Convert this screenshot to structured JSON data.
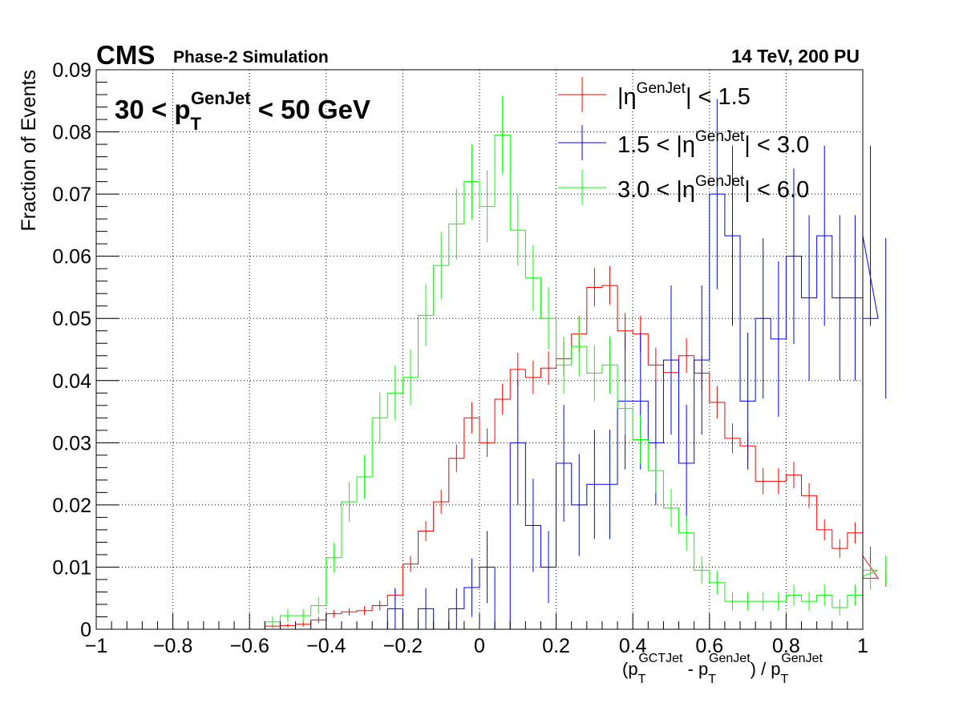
{
  "header": {
    "experiment": "CMS",
    "status": "Phase-2 Simulation",
    "conditions": "14 TeV, 200 PU"
  },
  "annotation": {
    "pre": "30 < p",
    "sub": "T",
    "sup": "GenJet",
    "post": " < 50 GeV"
  },
  "xlabel": {
    "p1": "(p",
    "sub1": "T",
    "sup1": "GCTJet",
    "p2": " - p",
    "sub2": "T",
    "sup2": "GenJet",
    "p3": ") / p",
    "sub3": "T",
    "sup3": "GenJet"
  },
  "ylabel": "Fraction of Events",
  "legend_parts": [
    {
      "pre": "|η",
      "sup": "GenJet",
      "post": "| < 1.5"
    },
    {
      "pre": "1.5 < |η",
      "sup": "GenJet",
      "post": "| < 3.0"
    },
    {
      "pre": "3.0 < |η",
      "sup": "GenJet",
      "post": "| < 6.0"
    }
  ],
  "chart_data": {
    "type": "line",
    "style": "step histogram with error bars",
    "xlim": [
      -1,
      1
    ],
    "ylim": [
      0,
      0.09
    ],
    "bin_width": 0.04,
    "grid": true,
    "legend_position": "top-right",
    "x_ticks": [
      -1,
      -0.8,
      -0.6,
      -0.4,
      -0.2,
      0,
      0.2,
      0.4,
      0.6,
      0.8,
      1
    ],
    "x_tick_labels": [
      "−1",
      "−0.8",
      "−0.6",
      "−0.4",
      "−0.2",
      "0",
      "0.2",
      "0.4",
      "0.6",
      "0.8",
      "1"
    ],
    "y_ticks": [
      0,
      0.01,
      0.02,
      0.03,
      0.04,
      0.05,
      0.06,
      0.07,
      0.08,
      0.09
    ],
    "y_tick_labels": [
      "0",
      "0.01",
      "0.02",
      "0.03",
      "0.04",
      "0.05",
      "0.06",
      "0.07",
      "0.08",
      "0.09"
    ],
    "series": [
      {
        "name": "|ηGenJet| < 1.5",
        "color": "#ff0000",
        "values": [
          0,
          0,
          0,
          0,
          0,
          0,
          0,
          0,
          0,
          0,
          0,
          0.0005,
          0.0006,
          0.0008,
          0.0015,
          0.0025,
          0.0028,
          0.003,
          0.0038,
          0.0055,
          0.0105,
          0.0158,
          0.0205,
          0.0275,
          0.034,
          0.03,
          0.037,
          0.0418,
          0.0405,
          0.042,
          0.0435,
          0.0475,
          0.055,
          0.0553,
          0.048,
          0.0475,
          0.0425,
          0.0413,
          0.044,
          0.0412,
          0.0365,
          0.0307,
          0.0295,
          0.0238,
          0.0238,
          0.0248,
          0.0215,
          0.016,
          0.013,
          0.0155,
          0.0118,
          0.0082
        ],
        "errors": [
          0,
          0,
          0,
          0,
          0,
          0,
          0,
          0,
          0,
          0,
          0,
          0.0003,
          0.0003,
          0.0004,
          0.0005,
          0.0006,
          0.0006,
          0.0007,
          0.0008,
          0.001,
          0.0013,
          0.0016,
          0.0019,
          0.0022,
          0.0025,
          0.0023,
          0.0025,
          0.0027,
          0.0027,
          0.0027,
          0.0028,
          0.0029,
          0.0031,
          0.0031,
          0.0029,
          0.0029,
          0.0028,
          0.0027,
          0.0028,
          0.0027,
          0.0026,
          0.0024,
          0.0023,
          0.0021,
          0.0021,
          0.0021,
          0.002,
          0.0017,
          0.0015,
          0.0017,
          0.0015,
          0.0013
        ]
      },
      {
        "name": "1.5 < |ηGenJet| < 3.0",
        "color": "#0000ff",
        "values": [
          0,
          0,
          0,
          0,
          0,
          0,
          0,
          0,
          0,
          0,
          0,
          0,
          0,
          0,
          0,
          0,
          0,
          0,
          0,
          0.0033,
          0,
          0.0033,
          0,
          0.0033,
          0.0067,
          0.01,
          0,
          0.03,
          0.0167,
          0.01,
          0.0267,
          0.02,
          0.0233,
          0.0233,
          0.0367,
          0.0367,
          0.03,
          0.0433,
          0.0267,
          0.0433,
          0.07,
          0.0633,
          0.0367,
          0.05,
          0.0467,
          0.06,
          0.0533,
          0.0633,
          0.0533,
          0.0533,
          0.0633,
          0.05
        ],
        "errors": [
          0,
          0,
          0,
          0,
          0,
          0,
          0,
          0,
          0,
          0,
          0,
          0,
          0,
          0,
          0,
          0,
          0,
          0,
          0,
          0.0033,
          0,
          0.0033,
          0,
          0.0033,
          0.0047,
          0.0058,
          0,
          0.01,
          0.0075,
          0.0058,
          0.0094,
          0.0082,
          0.0088,
          0.0088,
          0.011,
          0.011,
          0.01,
          0.012,
          0.0094,
          0.012,
          0.0153,
          0.0145,
          0.011,
          0.0129,
          0.0125,
          0.0141,
          0.0133,
          0.0145,
          0.0133,
          0.0133,
          0.0145,
          0.0129
        ]
      },
      {
        "name": "3.0 < |ηGenJet| < 6.0",
        "color": "#00ff00",
        "values": [
          0,
          0,
          0,
          0,
          0,
          0,
          0,
          0,
          0,
          0,
          0,
          0.0012,
          0.0022,
          0.0022,
          0.0038,
          0.0115,
          0.0205,
          0.0245,
          0.034,
          0.038,
          0.0405,
          0.0505,
          0.0585,
          0.0652,
          0.072,
          0.068,
          0.0795,
          0.0642,
          0.0565,
          0.05,
          0.0425,
          0.0455,
          0.0412,
          0.0425,
          0.0355,
          0.0305,
          0.0255,
          0.0195,
          0.0155,
          0.0095,
          0.0075,
          0.0045,
          0.0045,
          0.0045,
          0.0045,
          0.0055,
          0.0045,
          0.0055,
          0.0035,
          0.0055,
          0.0085,
          0.0095
        ],
        "errors": [
          0,
          0,
          0,
          0,
          0,
          0,
          0,
          0,
          0,
          0,
          0,
          0.0008,
          0.001,
          0.001,
          0.0014,
          0.0024,
          0.0032,
          0.0035,
          0.0041,
          0.0044,
          0.0045,
          0.005,
          0.0054,
          0.0057,
          0.006,
          0.0058,
          0.0063,
          0.0057,
          0.0053,
          0.005,
          0.0046,
          0.0048,
          0.0045,
          0.0046,
          0.0042,
          0.0039,
          0.0036,
          0.0031,
          0.0028,
          0.0022,
          0.0019,
          0.0015,
          0.0015,
          0.0015,
          0.0015,
          0.0017,
          0.0015,
          0.0017,
          0.0013,
          0.0017,
          0.0021,
          0.0024
        ]
      }
    ]
  }
}
